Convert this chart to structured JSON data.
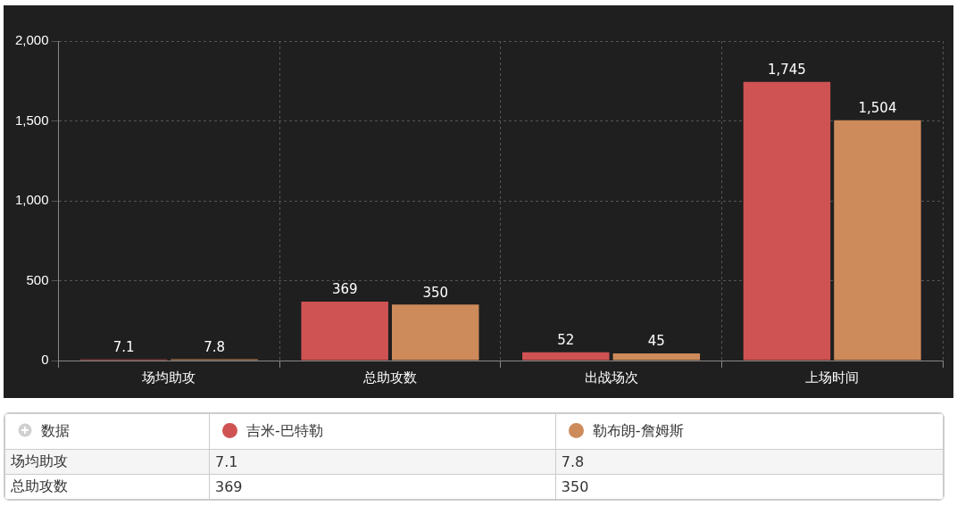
{
  "chart_data": {
    "type": "bar",
    "categories": [
      "场均助攻",
      "总助攻数",
      "出战场次",
      "上场时间"
    ],
    "series": [
      {
        "name": "吉米-巴特勒",
        "color": "#d05353",
        "values": [
          7.1,
          369,
          52,
          1745
        ],
        "value_labels": [
          "7.1",
          "369",
          "52",
          "1,745"
        ]
      },
      {
        "name": "勒布朗-詹姆斯",
        "color": "#cd8a5a",
        "values": [
          7.8,
          350,
          45,
          1504
        ],
        "value_labels": [
          "7.8",
          "350",
          "45",
          "1,504"
        ]
      }
    ],
    "ylim": [
      0,
      2000
    ],
    "yticks": [
      0,
      {
        "value": 500,
        "label": "500"
      },
      {
        "value": 1000,
        "label": "1,000"
      },
      {
        "value": 1500,
        "label": "1,500"
      },
      {
        "value": 2000,
        "label": "2,000"
      }
    ],
    "grid": true,
    "legend": "bottom",
    "annotations": [
      "数据"
    ]
  }
}
